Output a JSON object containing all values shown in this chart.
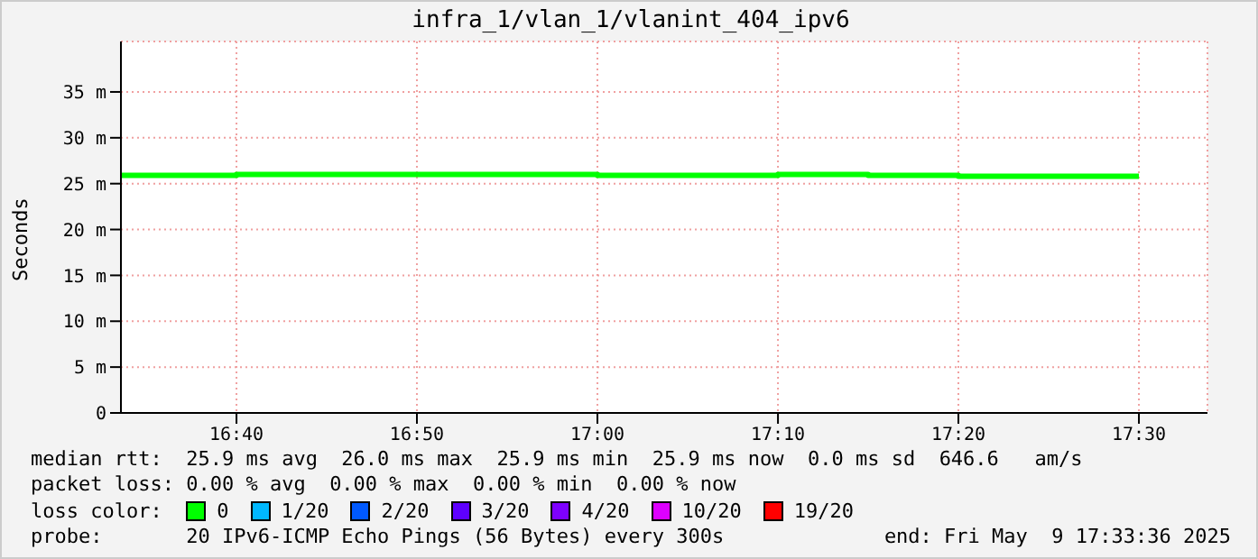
{
  "chart_data": {
    "type": "step",
    "title": "infra_1/vlan_1/vlanint_404_ipv6",
    "ylabel": "Seconds",
    "legend_title": "loss color:",
    "legend": "bottom",
    "grid": true,
    "marker": "none",
    "x": [
      16.56,
      16.6667,
      17.0,
      17.1667,
      17.25,
      17.3333,
      17.5
    ],
    "xlim": [
      16.56,
      17.5633
    ],
    "xticks": [
      {
        "value": 16.6667,
        "label": "16:40"
      },
      {
        "value": 16.8333,
        "label": "16:50"
      },
      {
        "value": 17.0,
        "label": "17:00"
      },
      {
        "value": 17.1667,
        "label": "17:10"
      },
      {
        "value": 17.3333,
        "label": "17:20"
      },
      {
        "value": 17.5,
        "label": "17:30"
      }
    ],
    "ylim": [
      0,
      40.5
    ],
    "yticks": [
      0,
      {
        "value": 5,
        "label": "5 m"
      },
      {
        "value": 10,
        "label": "10 m"
      },
      {
        "value": 15,
        "label": "15 m"
      },
      {
        "value": 20,
        "label": "20 m"
      },
      {
        "value": 25,
        "label": "25 m"
      },
      {
        "value": 30,
        "label": "30 m"
      },
      {
        "value": 35,
        "label": "35 m"
      }
    ],
    "series": [
      {
        "name": "0",
        "color": "#00ff00",
        "values": [
          25.9,
          26.0,
          25.9,
          26.0,
          25.9,
          25.8,
          25.8
        ]
      },
      {
        "name": "1/20",
        "color": "#00b8ff",
        "values": [
          null,
          null,
          null,
          null,
          null,
          null,
          null
        ]
      },
      {
        "name": "2/20",
        "color": "#0059ff",
        "values": [
          null,
          null,
          null,
          null,
          null,
          null,
          null
        ]
      },
      {
        "name": "3/20",
        "color": "#5e00ff",
        "values": [
          null,
          null,
          null,
          null,
          null,
          null,
          null
        ]
      },
      {
        "name": "4/20",
        "color": "#7e00ff",
        "values": [
          null,
          null,
          null,
          null,
          null,
          null,
          null
        ]
      },
      {
        "name": "10/20",
        "color": "#dd00ff",
        "values": [
          null,
          null,
          null,
          null,
          null,
          null,
          null
        ]
      },
      {
        "name": "19/20",
        "color": "#ff0000",
        "values": [
          null,
          null,
          null,
          null,
          null,
          null,
          null
        ]
      }
    ],
    "annotations": [
      "median rtt:  25.9 ms avg  26.0 ms max  25.9 ms min  25.9 ms now  0.0 ms sd  646.6   am/s",
      "packet loss: 0.00 % avg  0.00 % max  0.00 % min  0.00 % now",
      "probe:       20 IPv6-ICMP Echo Pings (56 Bytes) every 300s",
      "end: Fri May  9 17:33:36 2025"
    ]
  }
}
